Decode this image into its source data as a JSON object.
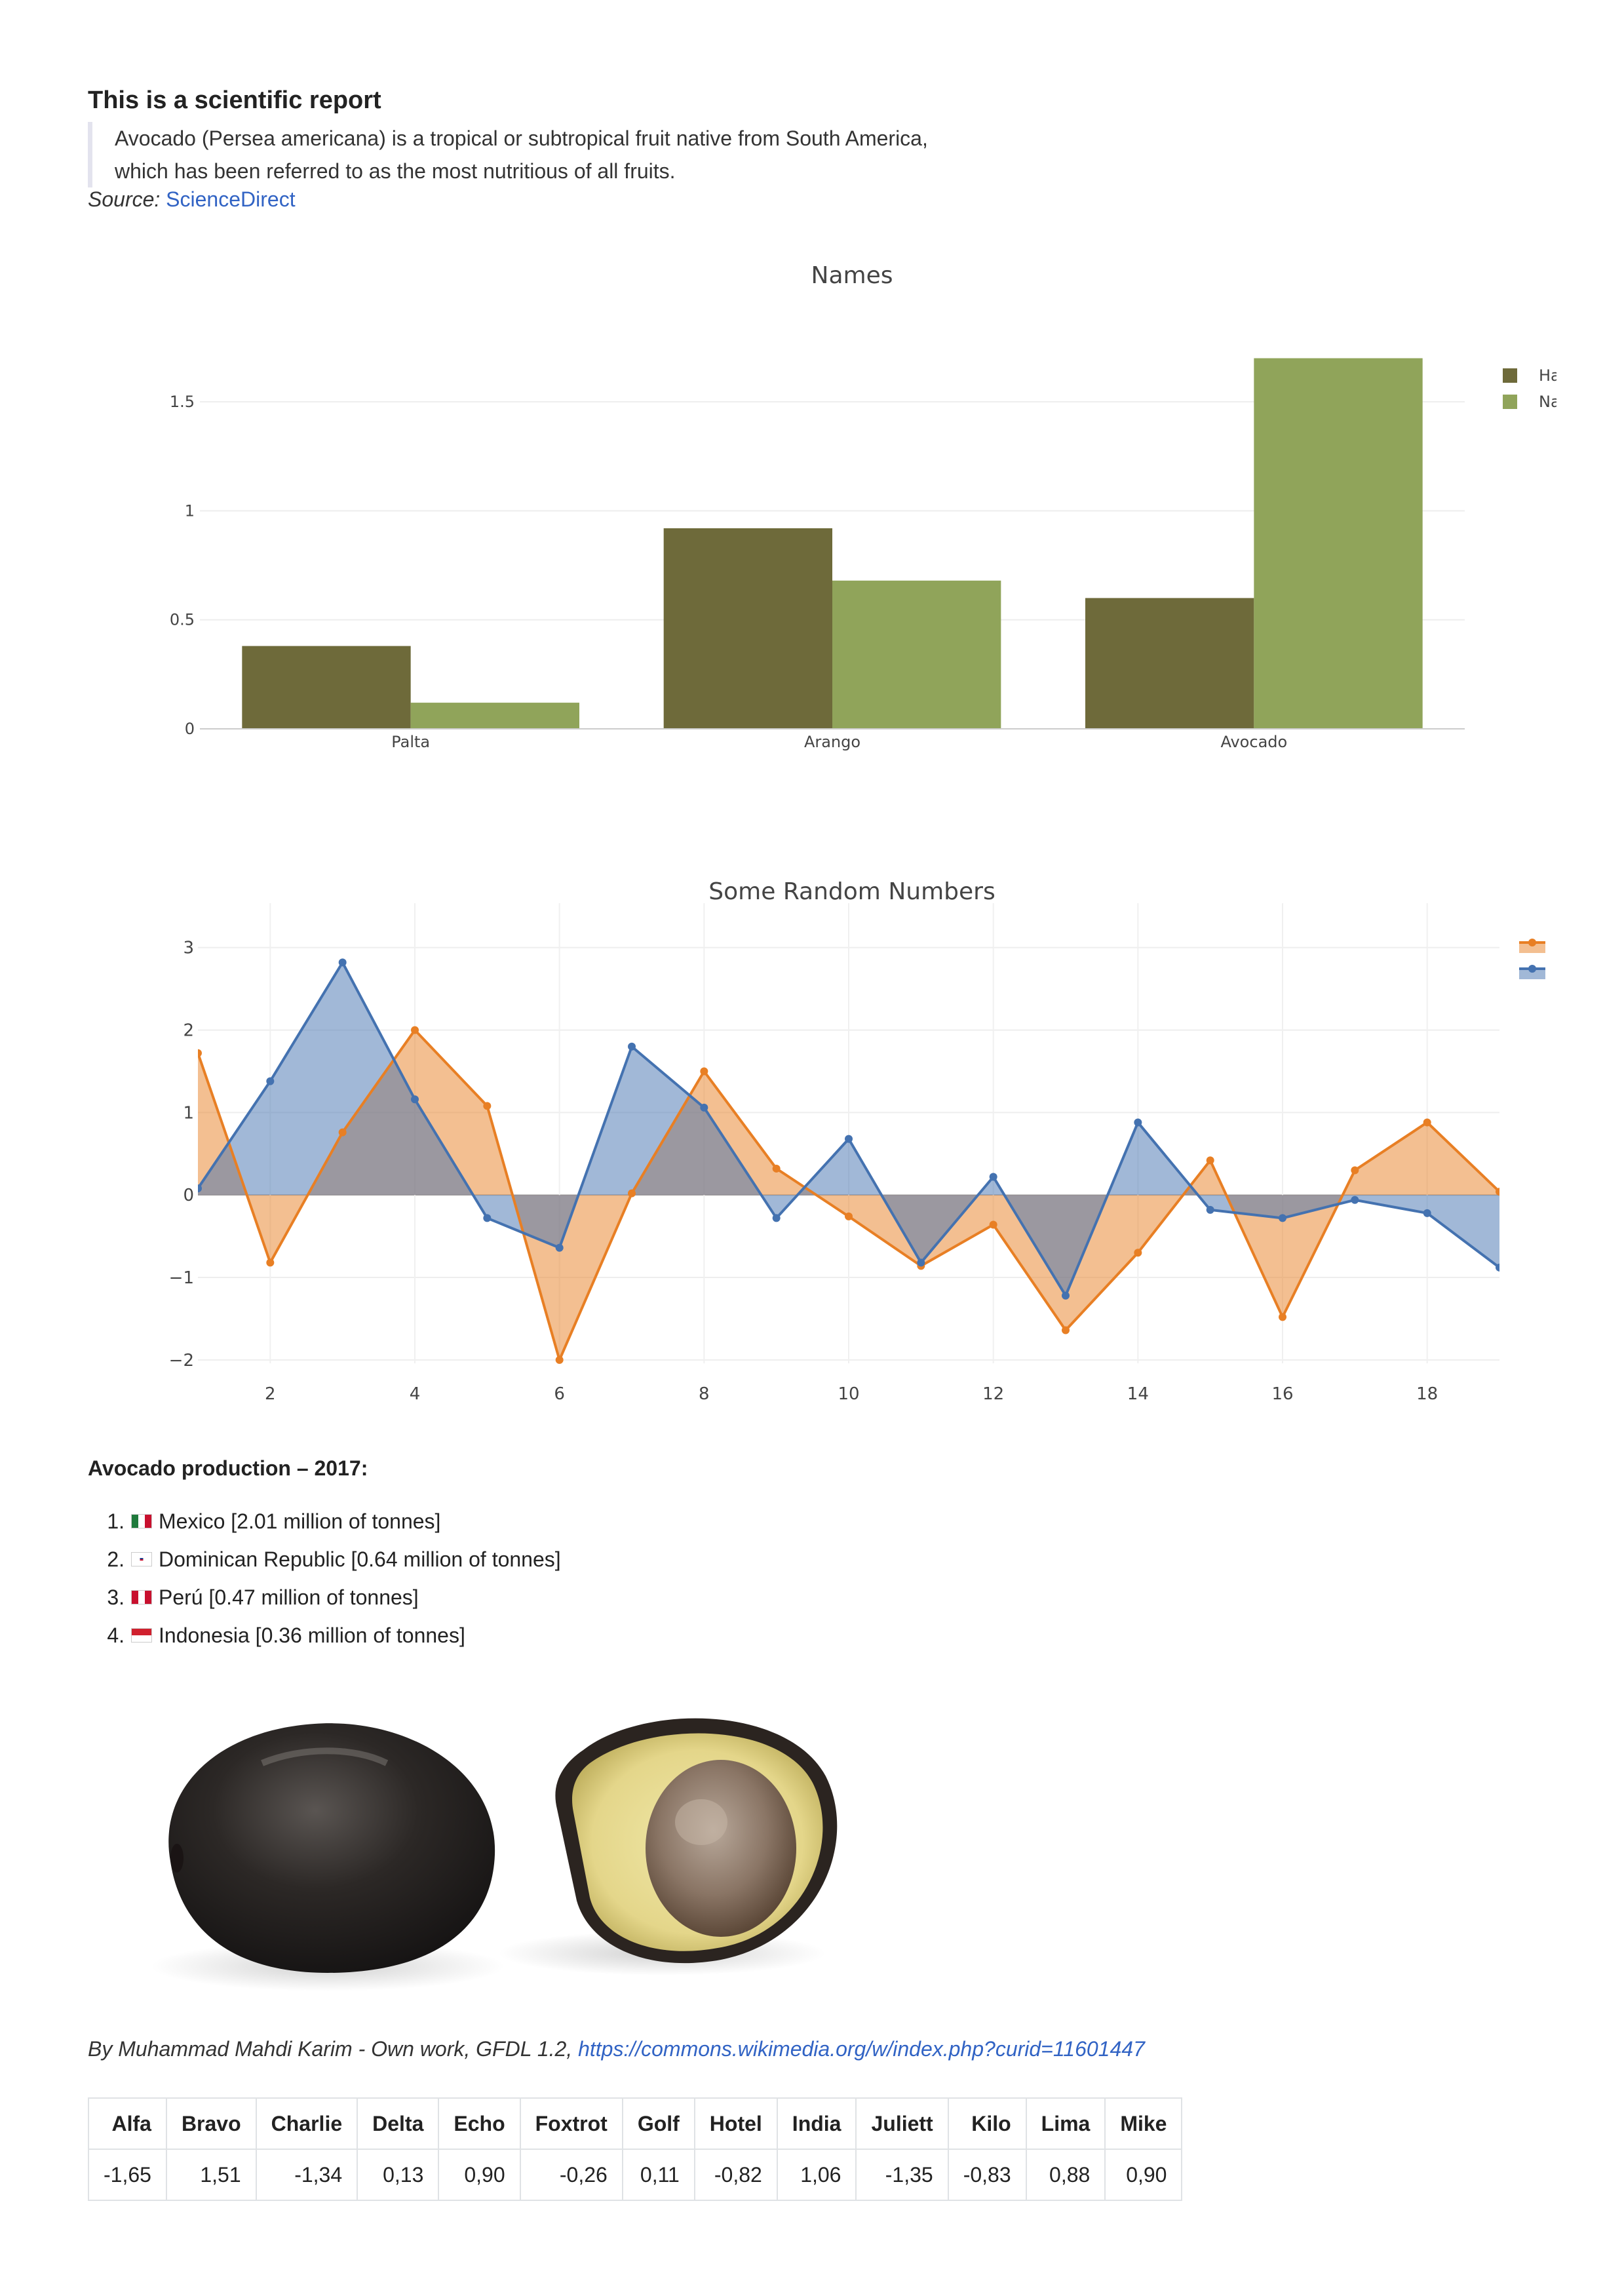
{
  "report": {
    "title": "This is a scientific report",
    "quote_line1": "Avocado (Persea americana) is a tropical or subtropical fruit native from South America,",
    "quote_line2": "which has been referred to as the most nutritious of all fruits.",
    "source_label": "Source:",
    "source_link": "ScienceDirect"
  },
  "chart_data": [
    {
      "type": "bar",
      "title": "Names",
      "categories": [
        "Palta",
        "Arango",
        "Avocado"
      ],
      "series": [
        {
          "name": "Ha",
          "color": "#6e6a3a",
          "values": [
            0.38,
            0.92,
            0.6
          ]
        },
        {
          "name": "Na",
          "color": "#90a45a",
          "values": [
            0.12,
            0.68,
            1.7
          ]
        }
      ],
      "yticks": [
        0,
        0.5,
        1,
        1.5
      ],
      "ytick_labels": [
        "0",
        "0.5",
        "1",
        "1.5"
      ],
      "ylim": [
        0,
        1.9
      ],
      "legend": "top-right"
    },
    {
      "type": "area",
      "title": "Some Random Numbers",
      "x": [
        1,
        2,
        3,
        4,
        5,
        6,
        7,
        8,
        9,
        10,
        11,
        12,
        13,
        14,
        15,
        16,
        17,
        18,
        19
      ],
      "series": [
        {
          "name": "",
          "color": "#e87f24",
          "values": [
            1.72,
            -0.82,
            0.76,
            2.0,
            1.08,
            -2.0,
            0.02,
            1.5,
            0.32,
            -0.26,
            -0.86,
            -0.36,
            -1.64,
            -0.7,
            0.42,
            -1.48,
            0.3,
            0.88,
            0.04
          ]
        },
        {
          "name": "",
          "color": "#4472b0",
          "values": [
            0.08,
            1.38,
            2.82,
            1.16,
            -0.28,
            -0.64,
            1.8,
            1.06,
            -0.28,
            0.68,
            -0.82,
            0.22,
            -1.22,
            0.88,
            -0.18,
            -0.28,
            -0.06,
            -0.22,
            -0.88
          ]
        }
      ],
      "xticks": [
        2,
        4,
        6,
        8,
        10,
        12,
        14,
        16,
        18
      ],
      "yticks": [
        -2,
        -1,
        0,
        1,
        2,
        3
      ],
      "ytick_labels": [
        "−2",
        "−1",
        "0",
        "1",
        "2",
        "3"
      ],
      "xlim": [
        1,
        19
      ],
      "ylim": [
        -2.2,
        3.3
      ],
      "legend": "top-right"
    }
  ],
  "production": {
    "title": "Avocado production – 2017:",
    "items": [
      {
        "num": "1.",
        "flag": "mexico-flag-icon",
        "text": "Mexico [2.01 million of tonnes]"
      },
      {
        "num": "2.",
        "flag": "dominican-republic-flag-icon",
        "text": "Dominican Republic [0.64 million of tonnes]"
      },
      {
        "num": "3.",
        "flag": "peru-flag-icon",
        "text": "Perú [0.47 million of tonnes]"
      },
      {
        "num": "4.",
        "flag": "indonesia-flag-icon",
        "text": "Indonesia [0.36 million of tonnes]"
      }
    ]
  },
  "credit": {
    "text": "By Muhammad Mahdi Karim - Own work, GFDL 1.2,",
    "link": "https://commons.wikimedia.org/w/index.php?curid=11601447"
  },
  "table": {
    "headers": [
      "Alfa",
      "Bravo",
      "Charlie",
      "Delta",
      "Echo",
      "Foxtrot",
      "Golf",
      "Hotel",
      "India",
      "Juliett",
      "Kilo",
      "Lima",
      "Mike"
    ],
    "values": [
      "-1,65",
      "1,51",
      "-1,34",
      "0,13",
      "0,90",
      "-0,26",
      "0,11",
      "-0,82",
      "1,06",
      "-1,35",
      "-0,83",
      "0,88",
      "0,90"
    ]
  }
}
